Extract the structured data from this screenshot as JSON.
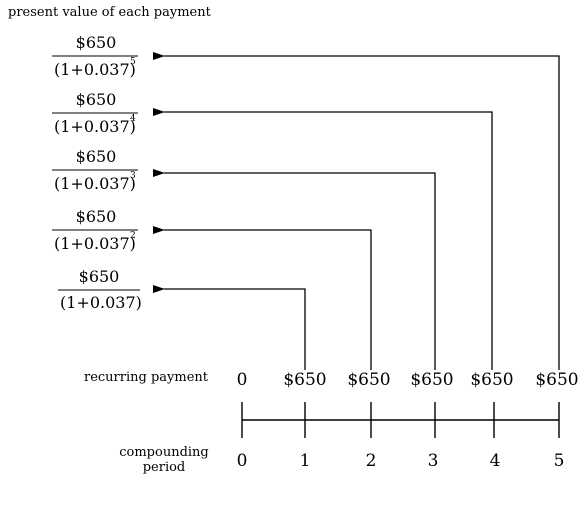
{
  "title": "present value of each payment",
  "fractions": [
    {
      "numerator": "$650",
      "denominator": "(1+0.037)",
      "exponent": "5"
    },
    {
      "numerator": "$650",
      "denominator": "(1+0.037)",
      "exponent": "4"
    },
    {
      "numerator": "$650",
      "denominator": "(1+0.037)",
      "exponent": "3"
    },
    {
      "numerator": "$650",
      "denominator": "(1+0.037)",
      "exponent": "2"
    },
    {
      "numerator": "$650",
      "denominator": "(1+0.037)",
      "exponent": ""
    }
  ],
  "recurring_label": "recurring payment",
  "payments": [
    "0",
    "$650",
    "$650",
    "$650",
    "$650",
    "$650"
  ],
  "compounding_label_line1": "compounding",
  "compounding_label_line2": "period",
  "periods": [
    "0",
    "1",
    "2",
    "3",
    "4",
    "5"
  ]
}
